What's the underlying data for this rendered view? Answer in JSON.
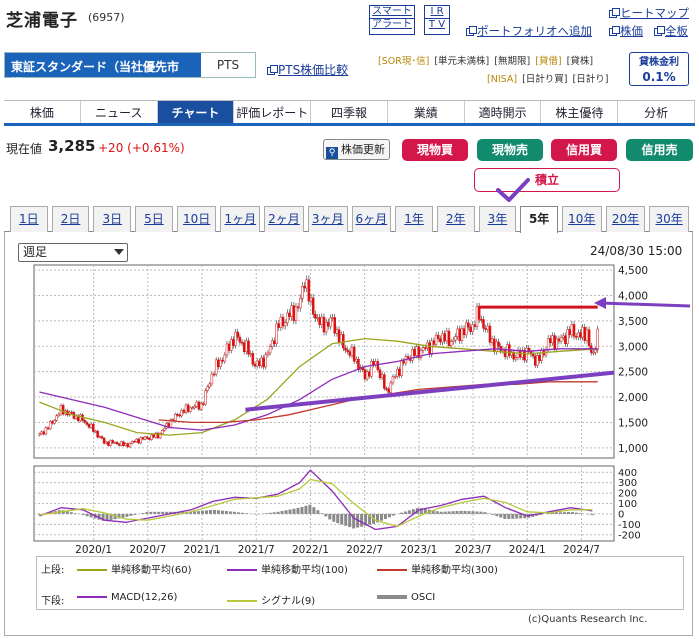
{
  "header": {
    "company_name": "芝浦電子",
    "code": "(6957)",
    "stack_links": [
      "スマート",
      "アラート"
    ],
    "ir_links": [
      "I R",
      "T V"
    ],
    "portfolio_link": "ポートフォリオへ追加",
    "heatmap_link": "ヒートマップ",
    "stock_link": "株価",
    "all_link": "全板",
    "market_selected": "東証スタンダード（当社優先市場)",
    "market_pts": "PTS",
    "pts_compare_link": "PTS株価比較",
    "tags_row1": [
      "SOR",
      "現・信",
      "単元未満株",
      "無期限",
      "貸借",
      "貸株"
    ],
    "tags_row1_text": [
      "[SOR現･信]",
      "[単元未満株]",
      "[無期限]",
      "[貸借]",
      "[貸株]"
    ],
    "tags_row2_text": [
      "[NISA]",
      "[日計り買]",
      "[日計り]"
    ],
    "rate_label": "貸株金利",
    "rate_value": "0.1%"
  },
  "nav": [
    "株価",
    "ニュース",
    "チャート",
    "評価レポート",
    "四季報",
    "業績",
    "適時開示",
    "株主優待",
    "分析"
  ],
  "nav_active": 2,
  "quote": {
    "label": "現在値",
    "price": "3,285",
    "change": "+20 (+0.61%)",
    "refresh_label": "株価更新",
    "buttons": [
      {
        "label": "現物買",
        "color": "#d3174a"
      },
      {
        "label": "現物売",
        "color": "#128a6e"
      },
      {
        "label": "信用買",
        "color": "#d3174a"
      },
      {
        "label": "信用売",
        "color": "#128a6e"
      }
    ],
    "tsumitate_label": "積立"
  },
  "period_tabs": [
    "1日",
    "2日",
    "3日",
    "5日",
    "10日",
    "1ヶ月",
    "2ヶ月",
    "3ヶ月",
    "6ヶ月",
    "1年",
    "2年",
    "3年",
    "5年",
    "10年",
    "20年",
    "30年"
  ],
  "period_active": 12,
  "chart": {
    "interval_select": "週足",
    "timestamp": "24/08/30 15:00",
    "copyright": "(c)Quants Research Inc."
  },
  "chart_data": {
    "type": "line",
    "price_axis": {
      "ylim": [
        800,
        4600
      ],
      "ticks": [
        "4,500",
        "4,000",
        "3,500",
        "3,000",
        "2,500",
        "2,000",
        "1,500",
        "1,000"
      ],
      "tick_values": [
        4500,
        4000,
        3500,
        3000,
        2500,
        2000,
        1500,
        1000
      ]
    },
    "macd_axis": {
      "ylim": [
        -260,
        460
      ],
      "ticks": [
        "400",
        "300",
        "200",
        "100",
        "0",
        "-100",
        "-200"
      ],
      "tick_values": [
        400,
        300,
        200,
        100,
        0,
        -100,
        -200
      ]
    },
    "x_ticks": [
      "2020/1",
      "2020/7",
      "2021/1",
      "2021/7",
      "2022/1",
      "2022/7",
      "2023/1",
      "2023/7",
      "2024/1",
      "2024/7"
    ],
    "x_tick_values": [
      2020.0,
      2020.5,
      2021.0,
      2021.5,
      2022.0,
      2022.5,
      2023.0,
      2023.5,
      2024.0,
      2024.5
    ],
    "x_range": [
      2019.45,
      2024.8
    ],
    "price_series": {
      "x": [
        2019.5,
        2019.6,
        2019.7,
        2019.8,
        2019.9,
        2020.0,
        2020.1,
        2020.2,
        2020.3,
        2020.4,
        2020.5,
        2020.6,
        2020.7,
        2020.8,
        2020.9,
        2021.0,
        2021.1,
        2021.2,
        2021.3,
        2021.4,
        2021.5,
        2021.6,
        2021.7,
        2021.8,
        2021.9,
        2021.95,
        2022.0,
        2022.1,
        2022.2,
        2022.3,
        2022.4,
        2022.5,
        2022.6,
        2022.7,
        2022.8,
        2022.9,
        2023.0,
        2023.1,
        2023.2,
        2023.3,
        2023.4,
        2023.5,
        2023.55,
        2023.6,
        2023.7,
        2023.8,
        2023.9,
        2024.0,
        2024.1,
        2024.2,
        2024.3,
        2024.4,
        2024.5,
        2024.55,
        2024.6,
        2024.65
      ],
      "values": [
        1250,
        1450,
        1750,
        1650,
        1550,
        1350,
        1100,
        1100,
        1050,
        1150,
        1200,
        1250,
        1500,
        1700,
        1800,
        1850,
        2500,
        2800,
        3200,
        3000,
        2600,
        2800,
        3400,
        3600,
        3800,
        4400,
        3800,
        3400,
        3500,
        3000,
        2800,
        2400,
        2700,
        2100,
        2500,
        2800,
        2900,
        3000,
        3200,
        3100,
        3300,
        3400,
        3650,
        3400,
        3000,
        2900,
        2800,
        2900,
        2700,
        3100,
        3100,
        3300,
        3200,
        3300,
        2700,
        3285
      ]
    },
    "ma_series": [
      {
        "name": "単純移動平均(60)",
        "color": "#9aa51c",
        "x": [
          2019.5,
          2019.8,
          2020.1,
          2020.4,
          2020.7,
          2021.0,
          2021.3,
          2021.6,
          2021.9,
          2022.2,
          2022.5,
          2022.8,
          2023.1,
          2023.4,
          2023.7,
          2024.0,
          2024.3,
          2024.65
        ],
        "values": [
          1900,
          1650,
          1500,
          1300,
          1250,
          1300,
          1550,
          1950,
          2600,
          3050,
          3150,
          3100,
          3000,
          2950,
          2900,
          2850,
          2900,
          2950
        ]
      },
      {
        "name": "単純移動平均(100)",
        "color": "#8e2bb8",
        "x": [
          2019.5,
          2019.8,
          2020.1,
          2020.4,
          2020.7,
          2021.0,
          2021.3,
          2021.6,
          2021.9,
          2022.2,
          2022.5,
          2022.8,
          2023.1,
          2023.4,
          2023.7,
          2024.0,
          2024.3,
          2024.65
        ],
        "values": [
          2100,
          1950,
          1800,
          1600,
          1400,
          1350,
          1450,
          1650,
          1950,
          2350,
          2600,
          2700,
          2850,
          2900,
          2950,
          2900,
          2950,
          2950
        ]
      },
      {
        "name": "単純移動平均(300)",
        "color": "#c0392b",
        "x": [
          2020.6,
          2020.9,
          2021.2,
          2021.5,
          2021.8,
          2022.1,
          2022.4,
          2022.7,
          2023.0,
          2023.3,
          2023.6,
          2023.9,
          2024.2,
          2024.5,
          2024.65
        ],
        "values": [
          1550,
          1500,
          1500,
          1550,
          1650,
          1800,
          1950,
          2050,
          2150,
          2200,
          2250,
          2250,
          2300,
          2300,
          2300
        ]
      }
    ],
    "macd_series": {
      "name": "MACD(12,26)",
      "x": [
        2019.5,
        2019.7,
        2019.9,
        2020.1,
        2020.3,
        2020.5,
        2020.7,
        2020.9,
        2021.1,
        2021.3,
        2021.5,
        2021.7,
        2021.9,
        2022.0,
        2022.2,
        2022.4,
        2022.6,
        2022.8,
        2023.0,
        2023.2,
        2023.4,
        2023.6,
        2023.8,
        2024.0,
        2024.2,
        2024.4,
        2024.6
      ],
      "values": [
        -20,
        60,
        40,
        -60,
        -80,
        -40,
        0,
        40,
        120,
        160,
        150,
        190,
        300,
        420,
        220,
        -40,
        -150,
        -120,
        40,
        80,
        140,
        170,
        60,
        -20,
        20,
        60,
        30
      ]
    },
    "signal_series": {
      "name": "シグナル(9)",
      "x": [
        2019.5,
        2019.7,
        2019.9,
        2020.1,
        2020.3,
        2020.5,
        2020.7,
        2020.9,
        2021.1,
        2021.3,
        2021.5,
        2021.7,
        2021.9,
        2022.0,
        2022.2,
        2022.4,
        2022.6,
        2022.8,
        2023.0,
        2023.2,
        2023.4,
        2023.6,
        2023.8,
        2024.0,
        2024.2,
        2024.4,
        2024.6
      ],
      "values": [
        -10,
        20,
        50,
        10,
        -50,
        -60,
        -20,
        20,
        80,
        140,
        155,
        170,
        240,
        330,
        290,
        100,
        -60,
        -120,
        -20,
        60,
        110,
        150,
        110,
        20,
        10,
        40,
        40
      ]
    },
    "osci_label": "OSCI",
    "legend_rows": [
      {
        "row_label": "上段:",
        "items": [
          "単純移動平均(60)",
          "単純移動平均(100)",
          "単純移動平均(300)"
        ]
      },
      {
        "row_label": "下段:",
        "items": [
          "MACD(12,26)",
          "シグナル(9)",
          "OSCI"
        ]
      }
    ],
    "annotations": [
      {
        "type": "resistance-line",
        "color": "#d0141c",
        "x": [
          2023.55,
          2024.65
        ],
        "values": [
          3770,
          3770
        ]
      },
      {
        "type": "trend-line",
        "color": "#7b3fc0",
        "x": [
          2021.4,
          2024.8
        ],
        "values": [
          1750,
          2480
        ]
      },
      {
        "type": "arrow",
        "color": "#7b3fc0"
      }
    ]
  }
}
